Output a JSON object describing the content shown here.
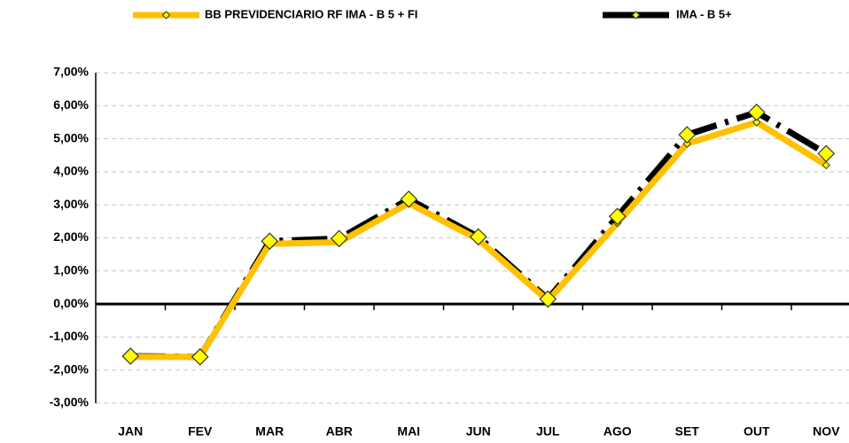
{
  "chart_data": {
    "type": "line",
    "categories": [
      "JAN",
      "FEV",
      "MAR",
      "ABR",
      "MAI",
      "JUN",
      "JUL",
      "AGO",
      "SET",
      "OUT",
      "NOV"
    ],
    "series": [
      {
        "name": "BB PREVIDENCIARIO RF IMA - B 5 + FI",
        "color": "#FFC000",
        "marker_color": "#FFFF00",
        "values": [
          -1.6,
          -1.6,
          1.82,
          1.87,
          3.05,
          1.95,
          0.1,
          2.45,
          4.85,
          5.5,
          4.2
        ]
      },
      {
        "name": "IMA - B 5+",
        "color": "#000000",
        "marker_color": "#FFFF00",
        "values": [
          -1.58,
          -1.6,
          1.9,
          1.98,
          3.17,
          2.03,
          0.15,
          2.65,
          5.12,
          5.8,
          4.55
        ]
      }
    ],
    "ylim": [
      -3,
      7
    ],
    "yticks": [
      {
        "value": -3,
        "label": "-3,00%"
      },
      {
        "value": -2,
        "label": "-2,00%"
      },
      {
        "value": -1,
        "label": "-1,00%"
      },
      {
        "value": 0,
        "label": "0,00%"
      },
      {
        "value": 1,
        "label": "1,00%"
      },
      {
        "value": 2,
        "label": "2,00%"
      },
      {
        "value": 3,
        "label": "3,00%"
      },
      {
        "value": 4,
        "label": "4,00%"
      },
      {
        "value": 5,
        "label": "5,00%"
      },
      {
        "value": 6,
        "label": "6,00%"
      },
      {
        "value": 7,
        "label": "7,00%"
      }
    ],
    "grid": true
  }
}
